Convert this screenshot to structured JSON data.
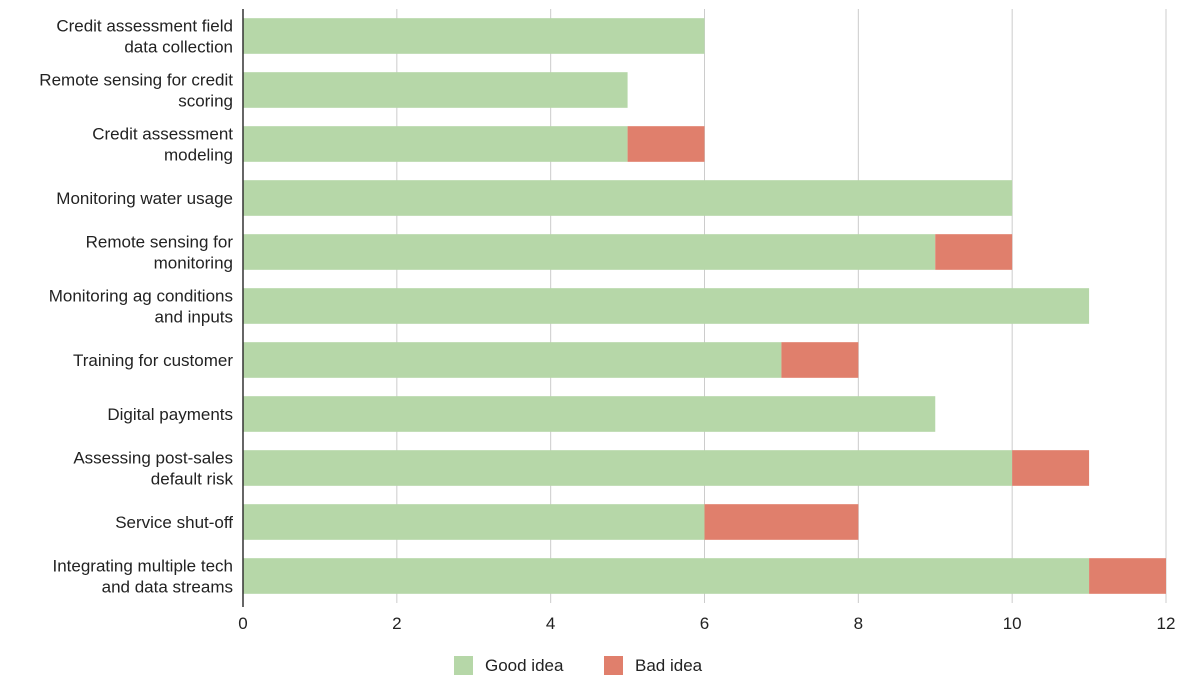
{
  "chart_data": {
    "type": "bar",
    "orientation": "horizontal",
    "stacked": true,
    "title": "",
    "xlabel": "",
    "ylabel": "",
    "xlim": [
      0,
      12
    ],
    "xticks": [
      "0",
      "2",
      "4",
      "6",
      "8",
      "10",
      "12"
    ],
    "grid": true,
    "legend_position": "bottom",
    "categories": [
      [
        "Credit assessment field",
        "data collection"
      ],
      [
        "Remote sensing for credit",
        "scoring"
      ],
      [
        "Credit assessment",
        "modeling"
      ],
      [
        "Monitoring water usage"
      ],
      [
        "Remote sensing for",
        "monitoring"
      ],
      [
        "Monitoring ag conditions",
        "and inputs"
      ],
      [
        "Training for customer"
      ],
      [
        "Digital payments"
      ],
      [
        "Assessing post-sales",
        "default risk"
      ],
      [
        "Service shut-off"
      ],
      [
        "Integrating multiple tech",
        "and data streams"
      ]
    ],
    "series": [
      {
        "name": "Good idea",
        "color": "#b6d7a8",
        "values": [
          6,
          5,
          5,
          10,
          9,
          11,
          7,
          9,
          10,
          6,
          11
        ]
      },
      {
        "name": "Bad idea",
        "color": "#e07f6c",
        "values": [
          0,
          0,
          1,
          0,
          1,
          0,
          1,
          0,
          1,
          2,
          1
        ]
      }
    ]
  }
}
